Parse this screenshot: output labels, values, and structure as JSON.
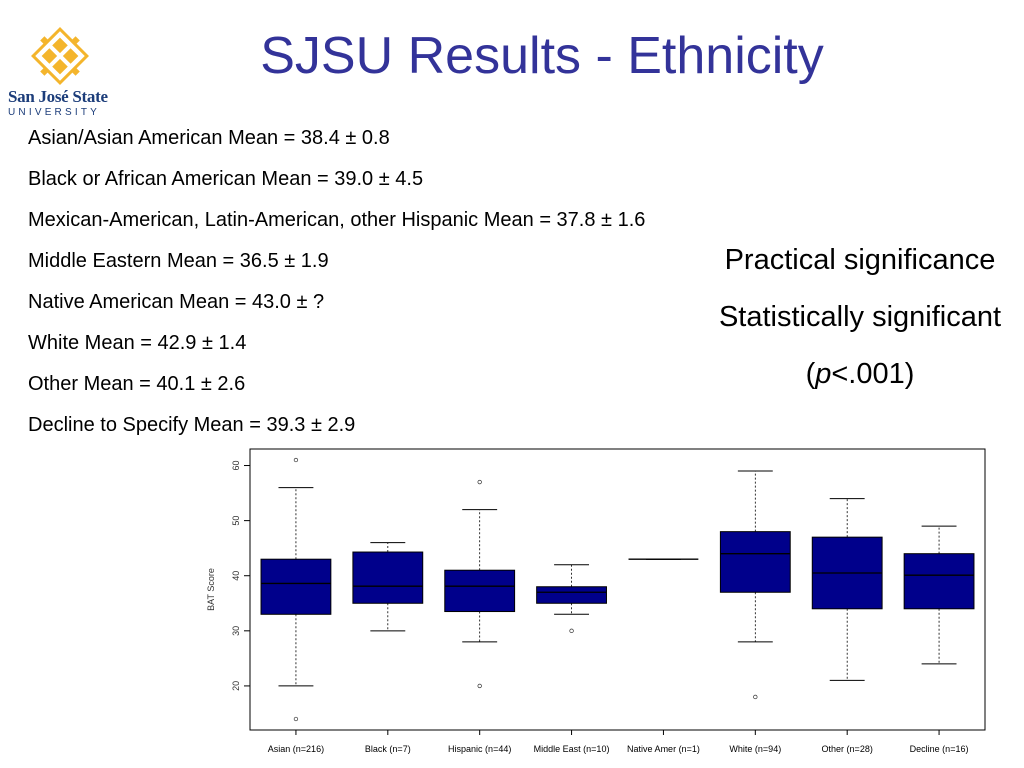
{
  "header": {
    "title": "SJSU Results - Ethnicity",
    "logo": {
      "name": "San José State",
      "sub": "UNIVERSITY",
      "color": "#f4b52c",
      "text_color": "#1c3d7a"
    }
  },
  "stats": [
    "Asian/Asian American Mean = 38.4 ± 0.8",
    "Black or African American Mean = 39.0 ± 4.5",
    "Mexican-American, Latin-American, other Hispanic Mean = 37.8 ± 1.6",
    "Middle Eastern Mean = 36.5 ± 1.9",
    "Native American Mean = 43.0 ± ?",
    "White Mean = 42.9 ± 1.4",
    "Other Mean = 40.1 ± 2.6",
    "Decline to Specify Mean = 39.3 ± 2.9"
  ],
  "notes": {
    "practical": "Practical significance",
    "statistical": "Statistically significant",
    "p_open": "(",
    "p_symbol": "p",
    "p_rest": "<.001)"
  },
  "chart_data": {
    "type": "box",
    "ylabel": "BAT Score",
    "ylim": [
      12,
      63
    ],
    "yticks": [
      20,
      30,
      40,
      50,
      60
    ],
    "box_color": "#00008b",
    "categories": [
      "Asian (n=216)",
      "Black (n=7)",
      "Hispanic (n=44)",
      "Middle East (n=10)",
      "Native Amer (n=1)",
      "White (n=94)",
      "Other (n=28)",
      "Decline (n=16)"
    ],
    "boxes": [
      {
        "whisker_low": 20,
        "q1": 33,
        "median": 38.6,
        "q3": 43,
        "whisker_high": 56,
        "outliers": [
          14,
          61
        ]
      },
      {
        "whisker_low": 30,
        "q1": 35,
        "median": 38.1,
        "q3": 44.3,
        "whisker_high": 46,
        "outliers": []
      },
      {
        "whisker_low": 28,
        "q1": 33.5,
        "median": 38.1,
        "q3": 41,
        "whisker_high": 52,
        "outliers": [
          20,
          57
        ]
      },
      {
        "whisker_low": 33,
        "q1": 35,
        "median": 37,
        "q3": 38,
        "whisker_high": 42,
        "outliers": [
          30
        ]
      },
      {
        "whisker_low": 43,
        "q1": 43,
        "median": 43,
        "q3": 43,
        "whisker_high": 43,
        "outliers": []
      },
      {
        "whisker_low": 28,
        "q1": 37,
        "median": 44,
        "q3": 48,
        "whisker_high": 59,
        "outliers": [
          18
        ]
      },
      {
        "whisker_low": 21,
        "q1": 34,
        "median": 40.5,
        "q3": 47,
        "whisker_high": 54,
        "outliers": []
      },
      {
        "whisker_low": 24,
        "q1": 34,
        "median": 40.1,
        "q3": 44,
        "whisker_high": 49,
        "outliers": []
      }
    ]
  }
}
